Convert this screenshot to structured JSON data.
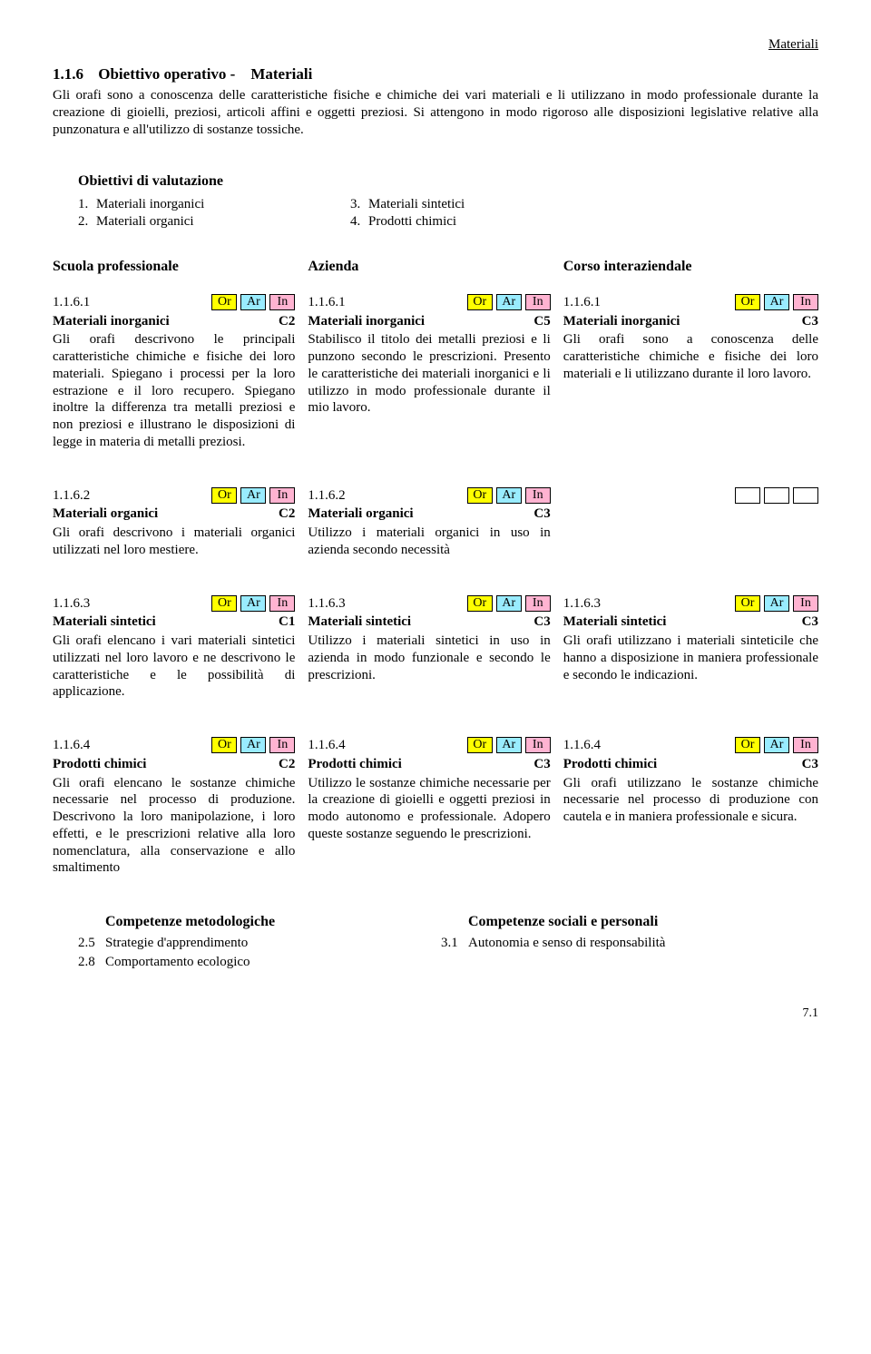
{
  "colors": {
    "or": "#ffff00",
    "ar": "#99ecff",
    "in": "#ffb3d1"
  },
  "header_right": "Materiali",
  "section": {
    "num": "1.1.6",
    "title_prefix": "Obiettivo operativo   -",
    "title_suffix": "Materiali"
  },
  "intro": "Gli orafi sono a conoscenza delle caratteristiche fisiche e chimiche dei vari materiali e li utilizzano in modo professionale durante la creazione di gioielli, preziosi, articoli affini e oggetti preziosi. Si attengono in modo rigoroso alle disposizioni legislative relative alla punzonatura e all'utilizzo di sostanze tossiche.",
  "val_title": "Obiettivi di valutazione",
  "val_list": [
    {
      "n": "1.",
      "t": "Materiali inorganici"
    },
    {
      "n": "2.",
      "t": "Materiali organici"
    },
    {
      "n": "3.",
      "t": "Materiali sintetici"
    },
    {
      "n": "4.",
      "t": "Prodotti chimici"
    }
  ],
  "col_heads": [
    "Scuola professionale",
    "Azienda",
    "Corso interaziendale"
  ],
  "tags": {
    "or": "Or",
    "ar": "Ar",
    "in": "In"
  },
  "rows": [
    {
      "cells": [
        {
          "code": "1.1.6.1",
          "tags": [
            "or",
            "ar",
            "in"
          ],
          "title": "Materiali inorganici",
          "level": "C2",
          "body": "Gli orafi descrivono le principali caratteristiche chimiche e fisiche dei loro materiali. Spiegano i processi per la loro estrazione e il loro recupero. Spiegano inoltre la differenza tra metalli preziosi e non preziosi e illustrano le disposizioni di legge in materia di metalli preziosi."
        },
        {
          "code": "1.1.6.1",
          "tags": [
            "or",
            "ar",
            "in"
          ],
          "title": "Materiali inorganici",
          "level": "C5",
          "body": "Stabilisco il titolo dei metalli preziosi e li punzono secondo le prescrizioni. Presento le caratteristiche dei materiali inorganici e li utilizzo in modo professionale durante il mio lavoro."
        },
        {
          "code": "1.1.6.1",
          "tags": [
            "or",
            "ar",
            "in"
          ],
          "title": "Materiali inorganici",
          "level": "C3",
          "body": "Gli orafi sono a conoscenza delle caratteristiche chimiche e fisiche dei loro materiali e li utilizzano durante il loro lavoro."
        }
      ]
    },
    {
      "cells": [
        {
          "code": "1.1.6.2",
          "tags": [
            "or",
            "ar",
            "in"
          ],
          "title": "Materiali organici",
          "level": "C2",
          "body": "Gli orafi descrivono i  materiali organici utilizzati nel loro mestiere."
        },
        {
          "code": "1.1.6.2",
          "tags": [
            "or",
            "ar",
            "in"
          ],
          "title": "Materiali organici",
          "level": "C3",
          "body": "Utilizzo i materiali organici in uso in azienda secondo necessità"
        },
        {
          "empty": true
        }
      ]
    },
    {
      "cells": [
        {
          "code": "1.1.6.3",
          "tags": [
            "or",
            "ar",
            "in"
          ],
          "title": "Materiali sintetici",
          "level": "C1",
          "body": "Gli orafi elencano i vari materiali sintetici utilizzati nel loro lavoro e ne descrivono le caratteristiche e le possibilità di applicazione."
        },
        {
          "code": "1.1.6.3",
          "tags": [
            "or",
            "ar",
            "in"
          ],
          "title": "Materiali sintetici",
          "level": "C3",
          "body": "Utilizzo i materiali sintetici in uso in azienda in modo funzionale e secondo le prescrizioni."
        },
        {
          "code": "1.1.6.3",
          "tags": [
            "or",
            "ar",
            "in"
          ],
          "title": "Materiali sintetici",
          "level": "C3",
          "body": "Gli orafi utilizzano i materiali sinteticile che hanno a disposizione in maniera professionale e secondo le indicazioni."
        }
      ]
    },
    {
      "cells": [
        {
          "code": "1.1.6.4",
          "tags": [
            "or",
            "ar",
            "in"
          ],
          "title": "Prodotti chimici",
          "level": "C2",
          "body": "Gli orafi elencano le sostanze chimiche necessarie nel processo di produzione. Descrivono la loro manipolazione, i loro effetti, e le prescrizioni relative alla loro nomenclatura, alla conservazione e allo smaltimento"
        },
        {
          "code": "1.1.6.4",
          "tags": [
            "or",
            "ar",
            "in"
          ],
          "title": "Prodotti chimici",
          "level": "C3",
          "body": "Utilizzo le sostanze chimiche necessarie per la creazione di gioielli e oggetti preziosi in modo autonomo e professionale. Adopero queste sostanze seguendo le prescrizioni."
        },
        {
          "code": "1.1.6.4",
          "tags": [
            "or",
            "ar",
            "in"
          ],
          "title": "Prodotti chimici",
          "level": "C3",
          "body": "Gli orafi utilizzano le sostanze chimiche necessarie nel processo di produzione con cautela e in maniera professionale e sicura."
        }
      ]
    }
  ],
  "comp": {
    "left_title": "Competenze metodologiche",
    "left": [
      {
        "n": "2.5",
        "t": "Strategie d'apprendimento"
      },
      {
        "n": "2.8",
        "t": "Comportamento ecologico"
      }
    ],
    "right_title": "Competenze sociali e personali",
    "right": [
      {
        "n": "3.1",
        "t": "Autonomia e senso di responsabilità"
      }
    ]
  },
  "footer": "7.1"
}
